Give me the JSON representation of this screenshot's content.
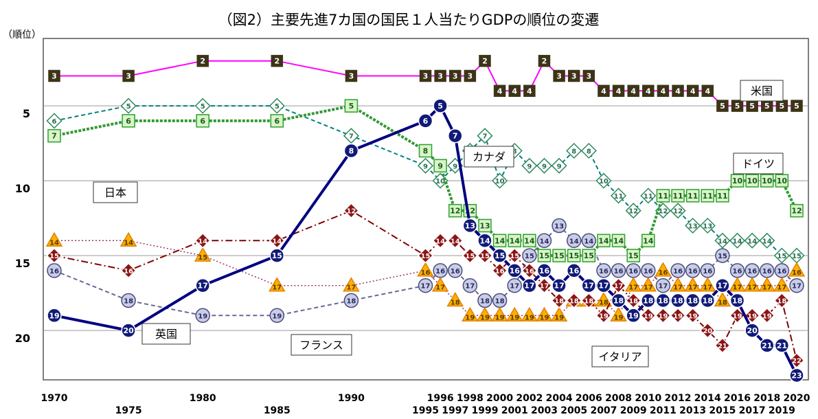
{
  "chart_data": {
    "type": "line",
    "title": "（図2）主要先進7カ国の国民１人当たりGDPの順位の変遷",
    "ylabel": "（順位）",
    "ylim": [
      1,
      23
    ],
    "y_inverted": true,
    "yticks": [
      "5",
      "10",
      "15",
      "20"
    ],
    "xlim": [
      1970,
      2020
    ],
    "x": [
      1970,
      1975,
      1980,
      1985,
      1990,
      1995,
      1996,
      1997,
      1998,
      1999,
      2000,
      2001,
      2002,
      2003,
      2004,
      2005,
      2006,
      2007,
      2008,
      2009,
      2010,
      2011,
      2012,
      2013,
      2014,
      2015,
      2016,
      2017,
      2018,
      2019,
      2020
    ],
    "xticks_top": [
      "1970",
      "1980",
      "1990",
      "1996",
      "1998",
      "2000",
      "2002",
      "2004",
      "2006",
      "2008",
      "2010",
      "2012",
      "2014",
      "2016",
      "2018",
      "2020"
    ],
    "xticks_bottom": [
      "1975",
      "1985",
      "1995",
      "1997",
      "1999",
      "2001",
      "2003",
      "2005",
      "2007",
      "2009",
      "2011",
      "2013",
      "2015",
      "2017",
      "2019"
    ],
    "series": [
      {
        "name": "米国",
        "color": "#ff00ff",
        "marker": "square",
        "values": [
          3,
          3,
          2,
          2,
          3,
          3,
          3,
          3,
          3,
          2,
          4,
          4,
          4,
          2,
          3,
          3,
          3,
          4,
          4,
          4,
          4,
          4,
          4,
          4,
          4,
          5,
          5,
          5,
          5,
          5,
          5
        ]
      },
      {
        "name": "カナダ",
        "color": "#008080",
        "marker": "diamond",
        "values": [
          6,
          5,
          5,
          5,
          7,
          9,
          10,
          9,
          8,
          7,
          10,
          8,
          9,
          9,
          9,
          8,
          8,
          10,
          11,
          12,
          11,
          12,
          12,
          13,
          13,
          14,
          14,
          14,
          14,
          15,
          15
        ]
      },
      {
        "name": "ドイツ",
        "color": "#339933",
        "marker": "square",
        "values": [
          7,
          6,
          6,
          6,
          5,
          8,
          9,
          12,
          12,
          13,
          14,
          14,
          14,
          15,
          15,
          15,
          15,
          14,
          14,
          15,
          14,
          11,
          11,
          11,
          11,
          11,
          10,
          10,
          10,
          10,
          12
        ]
      },
      {
        "name": "日本",
        "color": "#000080",
        "marker": "circle",
        "values": [
          19,
          20,
          17,
          15,
          8,
          6,
          5,
          7,
          13,
          14,
          15,
          16,
          17,
          16,
          17,
          16,
          17,
          17,
          18,
          19,
          18,
          18,
          18,
          18,
          18,
          17,
          18,
          20,
          21,
          21,
          23
        ]
      },
      {
        "name": "英国",
        "color": "#666699",
        "marker": "circle",
        "values": [
          16,
          18,
          19,
          19,
          18,
          17,
          16,
          16,
          17,
          18,
          18,
          17,
          15,
          14,
          13,
          14,
          14,
          16,
          16,
          16,
          16,
          17,
          16,
          16,
          16,
          15,
          16,
          16,
          16,
          16,
          17
        ]
      },
      {
        "name": "フランス",
        "color": "#993366",
        "marker": "triangle",
        "values": [
          14,
          14,
          15,
          17,
          17,
          16,
          17,
          18,
          19,
          19,
          19,
          19,
          19,
          19,
          19,
          18,
          18,
          18,
          19,
          17,
          17,
          16,
          17,
          17,
          17,
          18,
          17,
          17,
          17,
          17,
          16
        ]
      },
      {
        "name": "イタリア",
        "color": "#800000",
        "marker": "diamond",
        "values": [
          15,
          16,
          14,
          14,
          12,
          15,
          14,
          14,
          15,
          15,
          16,
          15,
          16,
          17,
          18,
          18,
          18,
          19,
          17,
          18,
          19,
          19,
          19,
          19,
          20,
          21,
          19,
          19,
          19,
          18,
          22
        ]
      }
    ],
    "labels": [
      {
        "text": "米国",
        "series": "米国"
      },
      {
        "text": "カナダ",
        "series": "カナダ"
      },
      {
        "text": "ドイツ",
        "series": "ドイツ"
      },
      {
        "text": "日本",
        "series": "日本"
      },
      {
        "text": "英国",
        "series": "英国"
      },
      {
        "text": "フランス",
        "series": "フランス"
      },
      {
        "text": "イタリア",
        "series": "イタリア"
      }
    ]
  }
}
